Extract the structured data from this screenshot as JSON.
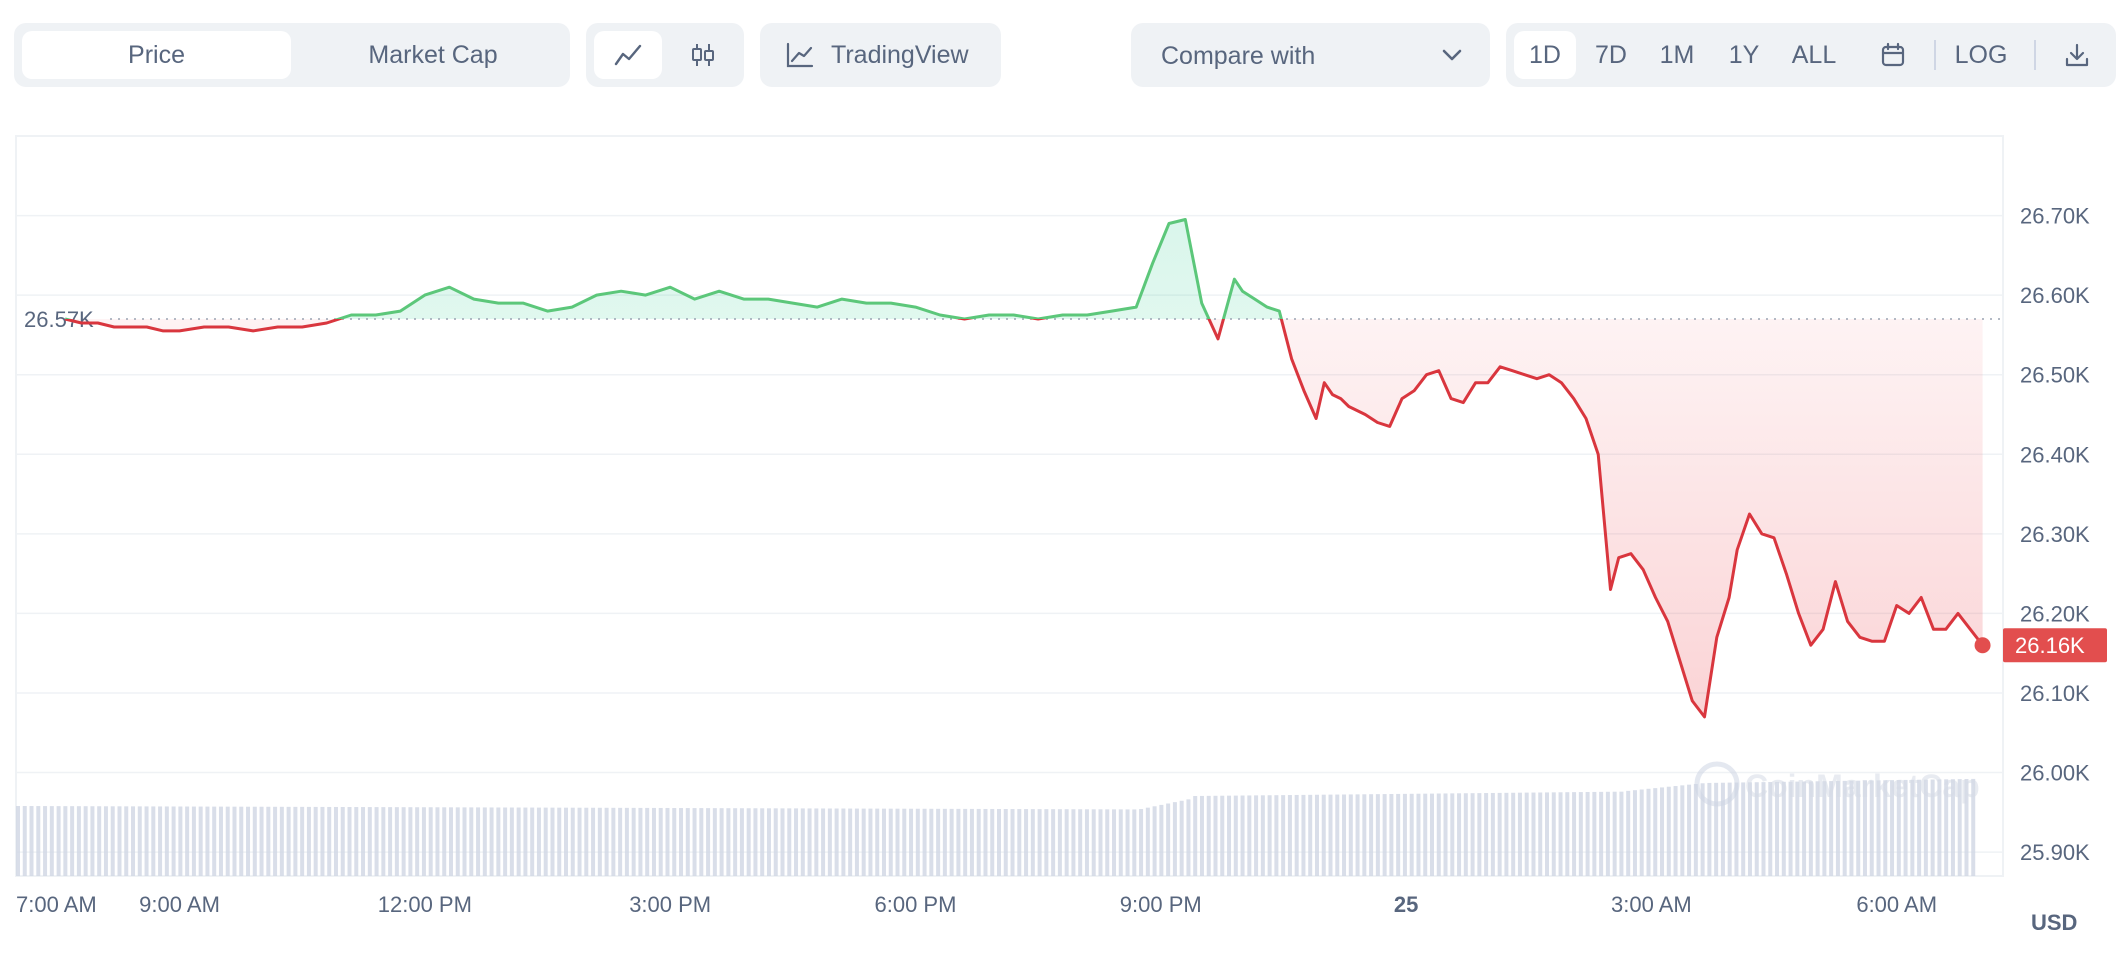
{
  "toolbar": {
    "view_tabs": [
      {
        "label": "Price",
        "active": true
      },
      {
        "label": "Market Cap",
        "active": false
      }
    ],
    "chart_styles": [
      {
        "icon": "line-chart-icon",
        "active": true
      },
      {
        "icon": "candlestick-icon",
        "active": false
      }
    ],
    "tradingview_label": "TradingView",
    "compare_label": "Compare with",
    "ranges": [
      {
        "label": "1D",
        "active": true
      },
      {
        "label": "7D",
        "active": false
      },
      {
        "label": "1M",
        "active": false
      },
      {
        "label": "1Y",
        "active": false
      },
      {
        "label": "ALL",
        "active": false
      }
    ],
    "log_label": "LOG"
  },
  "colors": {
    "up": "#16c784",
    "up_line": "#5cc77a",
    "down": "#ea3943",
    "down_line": "#d9363e",
    "volume": "#cfd6e4",
    "grid": "#eff2f5",
    "badge": "#e24e4e"
  },
  "chart_data": {
    "type": "line",
    "baseline_label": "26.57K",
    "baseline_value": 26.57,
    "current_label": "26.16K",
    "current_value": 26.16,
    "currency_label": "USD",
    "watermark": "CoinMarketCap",
    "ylim": [
      25.87,
      26.8
    ],
    "y_ticks": [
      "26.70K",
      "26.60K",
      "26.50K",
      "26.40K",
      "26.30K",
      "26.20K",
      "26.10K",
      "26.00K",
      "25.90K"
    ],
    "y_tick_values": [
      26.7,
      26.6,
      26.5,
      26.4,
      26.3,
      26.2,
      26.1,
      26.0,
      25.9
    ],
    "x_ticks": [
      {
        "label": "7:00 AM",
        "hour": 7
      },
      {
        "label": "9:00 AM",
        "hour": 9
      },
      {
        "label": "12:00 PM",
        "hour": 12
      },
      {
        "label": "3:00 PM",
        "hour": 15
      },
      {
        "label": "6:00 PM",
        "hour": 18
      },
      {
        "label": "9:00 PM",
        "hour": 21
      },
      {
        "label": "25",
        "hour": 24,
        "bold": true
      },
      {
        "label": "3:00 AM",
        "hour": 27
      },
      {
        "label": "6:00 AM",
        "hour": 30
      }
    ],
    "xlim": [
      7,
      31.3
    ],
    "series": [
      {
        "x": [
          7.6,
          7.8,
          8.0,
          8.2,
          8.4,
          8.6,
          8.8,
          9.0,
          9.3,
          9.6,
          9.9,
          10.2,
          10.5,
          10.8,
          11.1,
          11.4,
          11.7,
          12.0,
          12.3,
          12.6,
          12.9,
          13.2,
          13.5,
          13.8,
          14.1,
          14.4,
          14.7,
          15.0,
          15.3,
          15.6,
          15.9,
          16.2,
          16.5,
          16.8,
          17.1,
          17.4,
          17.7,
          18.0,
          18.3,
          18.6,
          18.9,
          19.2,
          19.5,
          19.8,
          20.1,
          20.4,
          20.7,
          20.9,
          21.1,
          21.3,
          21.5,
          21.7,
          21.9,
          22.0,
          22.15,
          22.3,
          22.45,
          22.6,
          22.75,
          22.9,
          23.0,
          23.1,
          23.2,
          23.3,
          23.4,
          23.5,
          23.65,
          23.8,
          23.95,
          24.1,
          24.25,
          24.4,
          24.55,
          24.7,
          24.85,
          25.0,
          25.15,
          25.3,
          25.45,
          25.6,
          25.75,
          25.9,
          26.05,
          26.2,
          26.35,
          26.5,
          26.6,
          26.75,
          26.9,
          27.05,
          27.2,
          27.35,
          27.5,
          27.65,
          27.8,
          27.95,
          28.05,
          28.2,
          28.35,
          28.5,
          28.65,
          28.8,
          28.95,
          29.1,
          29.25,
          29.4,
          29.55,
          29.7,
          29.85,
          30.0,
          30.15,
          30.3,
          30.45,
          30.6,
          30.75,
          30.9,
          31.05
        ],
        "y": [
          26.57,
          26.565,
          26.565,
          26.56,
          26.56,
          26.56,
          26.555,
          26.555,
          26.56,
          26.56,
          26.555,
          26.56,
          26.56,
          26.565,
          26.575,
          26.575,
          26.58,
          26.6,
          26.61,
          26.595,
          26.59,
          26.59,
          26.58,
          26.585,
          26.6,
          26.605,
          26.6,
          26.61,
          26.595,
          26.605,
          26.595,
          26.595,
          26.59,
          26.585,
          26.595,
          26.59,
          26.59,
          26.585,
          26.575,
          26.57,
          26.575,
          26.575,
          26.57,
          26.575,
          26.575,
          26.58,
          26.585,
          26.64,
          26.69,
          26.695,
          26.59,
          26.545,
          26.62,
          26.605,
          26.595,
          26.585,
          26.58,
          26.52,
          26.48,
          26.445,
          26.49,
          26.475,
          26.47,
          26.46,
          26.455,
          26.45,
          26.44,
          26.435,
          26.47,
          26.48,
          26.5,
          26.505,
          26.47,
          26.465,
          26.49,
          26.49,
          26.51,
          26.505,
          26.5,
          26.495,
          26.5,
          26.49,
          26.47,
          26.445,
          26.4,
          26.23,
          26.27,
          26.275,
          26.255,
          26.22,
          26.19,
          26.14,
          26.09,
          26.07,
          26.17,
          26.22,
          26.28,
          26.325,
          26.3,
          26.295,
          26.25,
          26.2,
          26.16,
          26.18,
          26.24,
          26.19,
          26.17,
          26.165,
          26.165,
          26.21,
          26.2,
          26.22,
          26.18,
          26.18,
          26.2,
          26.18,
          26.16
        ],
        "volume_trend": "rising"
      }
    ],
    "grid": true,
    "legend": "none"
  }
}
